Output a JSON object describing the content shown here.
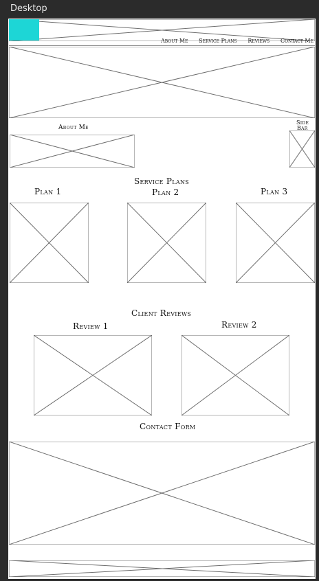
{
  "frame": {
    "label": "Desktop"
  },
  "nav": {
    "items": [
      "About Me",
      "Service Plans",
      "Reviews",
      "Contact Me"
    ]
  },
  "sections": {
    "about_heading": "About Me",
    "sidebar_label_line1": "Side",
    "sidebar_label_line2": "Bar",
    "service_heading": "Service Plans",
    "plans": [
      "Plan 1",
      "Plan 2",
      "Plan 3"
    ],
    "reviews_heading": "Client Reviews",
    "reviews": [
      "Review 1",
      "Review 2"
    ],
    "contact_heading": "Contact Form"
  },
  "colors": {
    "background": "#2b2b2b",
    "artboard": "#ffffff",
    "logo_accent": "#1dd6d6",
    "wireframe_stroke": "#6e6e6e"
  }
}
